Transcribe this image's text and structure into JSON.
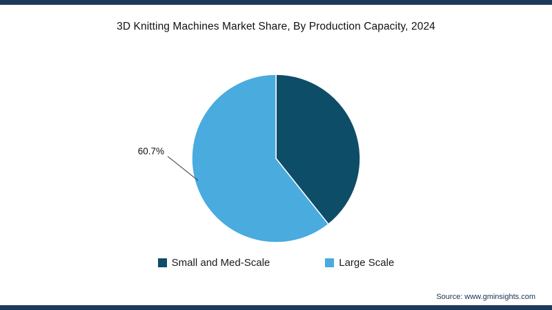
{
  "title": "3D Knitting Machines Market Share, By Production Capacity, 2024",
  "source": "Source: www.gminsights.com",
  "accent_bar_color": "#1d3a5a",
  "chart_data": {
    "type": "pie",
    "title": "3D Knitting Machines Market Share, By Production Capacity, 2024",
    "slices": [
      {
        "label": "Small and Med-Scale",
        "value": 39.3,
        "color": "#0e4d67"
      },
      {
        "label": "Large Scale",
        "value": 60.7,
        "color": "#4aabdf"
      }
    ],
    "start_angle_deg": -90,
    "direction": "clockwise",
    "data_label": {
      "text": "60.7%",
      "slice": "Large Scale"
    },
    "legend_position": "bottom",
    "legend": [
      "Small and Med-Scale",
      "Large Scale"
    ]
  }
}
